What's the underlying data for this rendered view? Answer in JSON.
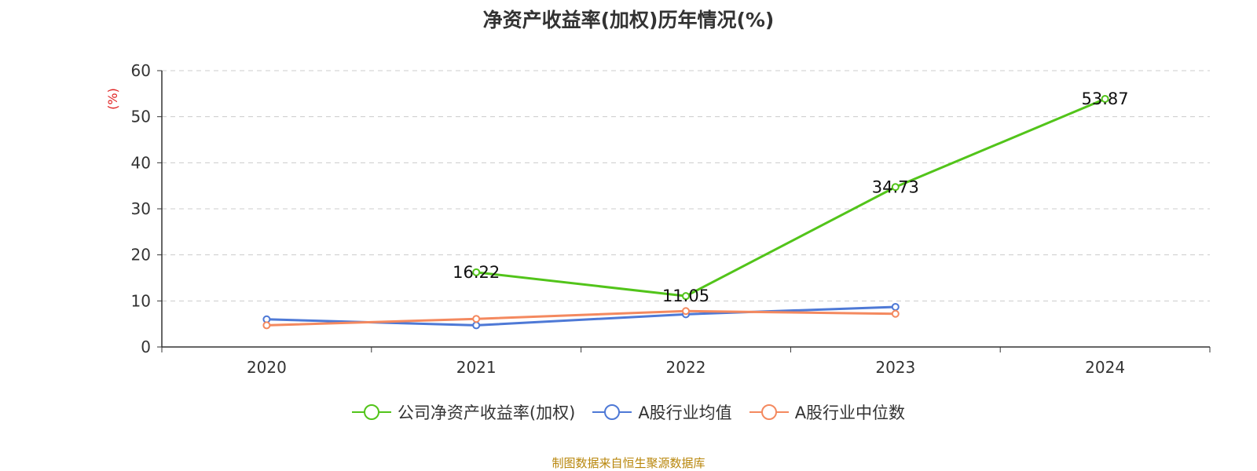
{
  "chart_data": {
    "type": "line",
    "title": "净资产收益率(加权)历年情况(%)",
    "ylabel": "(%)",
    "xlabel": "",
    "categories": [
      "2020",
      "2021",
      "2022",
      "2023",
      "2024"
    ],
    "ylim": [
      0,
      60
    ],
    "yticks": [
      0,
      10,
      20,
      30,
      40,
      50,
      60
    ],
    "grid": true,
    "legend_position": "bottom",
    "series": [
      {
        "name": "公司净资产收益率(加权)",
        "color": "#52c41a",
        "values": [
          null,
          16.22,
          11.05,
          34.73,
          53.87
        ],
        "data_labels": [
          "",
          "16.22",
          "11.05",
          "34.73",
          "53.87"
        ]
      },
      {
        "name": "A股行业均值",
        "color": "#4e79d6",
        "values": [
          6.0,
          4.7,
          7.1,
          8.7,
          null
        ],
        "data_labels": []
      },
      {
        "name": "A股行业中位数",
        "color": "#f4895f",
        "values": [
          4.7,
          6.1,
          7.8,
          7.2,
          null
        ],
        "data_labels": []
      }
    ]
  },
  "source": "制图数据来自恒生聚源数据库"
}
